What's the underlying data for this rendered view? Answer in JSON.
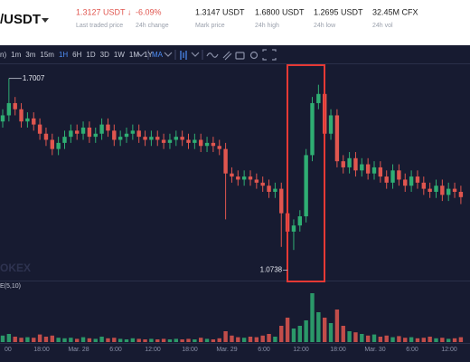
{
  "header": {
    "pair": "/USDT",
    "stats": [
      {
        "value": "1.3127 USDT ↓",
        "label": "Last traded price"
      },
      {
        "value": "-6.09%",
        "label": "24h change"
      },
      {
        "value": "1.3147 USDT",
        "label": "Mark price"
      },
      {
        "value": "1.6800 USDT",
        "label": "24h high"
      },
      {
        "value": "1.2695 USDT",
        "label": "24h low"
      },
      {
        "value": "32.45M CFX",
        "label": "24h vol"
      }
    ]
  },
  "toolbar": {
    "intervals": [
      "n)",
      "1m",
      "3m",
      "15m",
      "1H",
      "6H",
      "1D",
      "3D",
      "1W",
      "1M",
      "1Y"
    ],
    "active_interval": "1H",
    "indicator": "MA"
  },
  "chart_data": {
    "type": "candlestick",
    "watermark": "OKEX",
    "volume_label": "E(5,10)",
    "x_labels": [
      "00",
      "18:00",
      "Mar. 28",
      "6:00",
      "12:00",
      "18:00",
      "Mar. 29",
      "6:00",
      "12:00",
      "18:00",
      "Mar. 30",
      "6:00",
      "12:00"
    ],
    "up_color": "#2fae73",
    "down_color": "#e0564f",
    "ylim": [
      1.04,
      1.75
    ],
    "volume_ylim": [
      0,
      100
    ],
    "open": [
      1.56,
      1.58,
      1.62,
      1.6,
      1.56,
      1.57,
      1.55,
      1.52,
      1.5,
      1.47,
      1.49,
      1.51,
      1.53,
      1.52,
      1.54,
      1.51,
      1.52,
      1.55,
      1.53,
      1.5,
      1.51,
      1.52,
      1.53,
      1.51,
      1.5,
      1.51,
      1.5,
      1.49,
      1.5,
      1.51,
      1.5,
      1.49,
      1.5,
      1.48,
      1.49,
      1.48,
      1.47,
      1.39,
      1.38,
      1.37,
      1.38,
      1.37,
      1.36,
      1.35,
      1.33,
      1.34,
      1.26,
      1.2,
      1.22,
      1.25,
      1.45,
      1.62,
      1.65,
      1.52,
      1.58,
      1.43,
      1.41,
      1.44,
      1.4,
      1.42,
      1.39,
      1.41,
      1.38,
      1.36,
      1.4,
      1.37,
      1.35,
      1.38,
      1.36,
      1.34,
      1.33,
      1.35,
      1.32,
      1.34,
      1.33
    ],
    "high": [
      1.6,
      1.7007,
      1.64,
      1.62,
      1.59,
      1.59,
      1.57,
      1.54,
      1.52,
      1.51,
      1.53,
      1.55,
      1.55,
      1.56,
      1.56,
      1.54,
      1.57,
      1.57,
      1.55,
      1.53,
      1.54,
      1.55,
      1.55,
      1.53,
      1.53,
      1.53,
      1.52,
      1.52,
      1.53,
      1.53,
      1.52,
      1.52,
      1.52,
      1.51,
      1.51,
      1.5,
      1.49,
      1.41,
      1.4,
      1.4,
      1.4,
      1.39,
      1.38,
      1.37,
      1.36,
      1.36,
      1.28,
      1.24,
      1.27,
      1.47,
      1.64,
      1.68,
      1.67,
      1.6,
      1.6,
      1.45,
      1.46,
      1.46,
      1.44,
      1.44,
      1.43,
      1.43,
      1.4,
      1.42,
      1.42,
      1.39,
      1.4,
      1.4,
      1.38,
      1.36,
      1.37,
      1.37,
      1.36,
      1.36,
      1.35
    ],
    "low": [
      1.54,
      1.56,
      1.58,
      1.54,
      1.54,
      1.53,
      1.5,
      1.48,
      1.45,
      1.45,
      1.47,
      1.49,
      1.5,
      1.5,
      1.49,
      1.49,
      1.5,
      1.51,
      1.48,
      1.48,
      1.49,
      1.5,
      1.49,
      1.48,
      1.48,
      1.48,
      1.47,
      1.47,
      1.48,
      1.48,
      1.47,
      1.47,
      1.46,
      1.46,
      1.46,
      1.45,
      1.24,
      1.36,
      1.35,
      1.35,
      1.35,
      1.34,
      1.33,
      1.31,
      1.31,
      1.15,
      1.0738,
      1.14,
      1.2,
      1.23,
      1.43,
      1.6,
      1.5,
      1.5,
      1.41,
      1.39,
      1.39,
      1.38,
      1.38,
      1.37,
      1.37,
      1.36,
      1.34,
      1.34,
      1.35,
      1.33,
      1.33,
      1.34,
      1.32,
      1.31,
      1.31,
      1.3,
      1.3,
      1.31,
      1.29
    ],
    "close": [
      1.58,
      1.62,
      1.6,
      1.56,
      1.57,
      1.55,
      1.52,
      1.5,
      1.47,
      1.49,
      1.51,
      1.53,
      1.52,
      1.54,
      1.51,
      1.52,
      1.55,
      1.53,
      1.5,
      1.51,
      1.52,
      1.53,
      1.51,
      1.5,
      1.51,
      1.5,
      1.49,
      1.5,
      1.51,
      1.5,
      1.49,
      1.5,
      1.48,
      1.49,
      1.48,
      1.47,
      1.39,
      1.38,
      1.37,
      1.38,
      1.37,
      1.36,
      1.35,
      1.33,
      1.34,
      1.26,
      1.2,
      1.22,
      1.25,
      1.45,
      1.62,
      1.65,
      1.52,
      1.58,
      1.43,
      1.41,
      1.44,
      1.4,
      1.42,
      1.39,
      1.41,
      1.38,
      1.36,
      1.4,
      1.37,
      1.35,
      1.38,
      1.36,
      1.34,
      1.33,
      1.35,
      1.32,
      1.34,
      1.33,
      1.3127
    ],
    "volume": [
      12,
      15,
      10,
      8,
      9,
      8,
      14,
      10,
      12,
      8,
      7,
      8,
      6,
      9,
      7,
      6,
      10,
      7,
      8,
      6,
      5,
      7,
      6,
      5,
      6,
      5,
      6,
      5,
      6,
      5,
      6,
      5,
      8,
      6,
      5,
      7,
      20,
      12,
      9,
      8,
      10,
      9,
      12,
      15,
      10,
      30,
      45,
      25,
      30,
      40,
      90,
      55,
      45,
      35,
      60,
      30,
      20,
      18,
      15,
      12,
      14,
      10,
      12,
      9,
      11,
      8,
      9,
      7,
      8,
      10,
      7,
      8,
      6,
      7,
      9
    ],
    "high_label_index": 1,
    "low_label_index": 46
  }
}
